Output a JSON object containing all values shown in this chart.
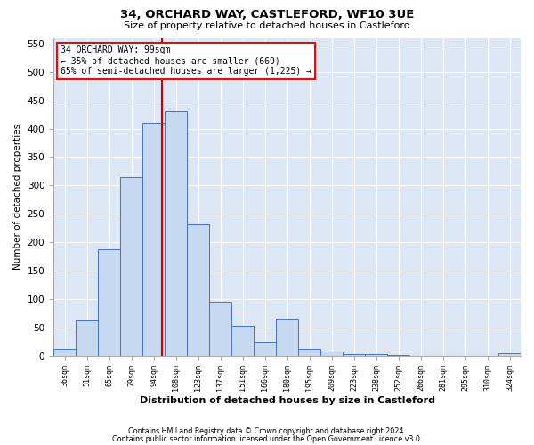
{
  "title1": "34, ORCHARD WAY, CASTLEFORD, WF10 3UE",
  "title2": "Size of property relative to detached houses in Castleford",
  "xlabel": "Distribution of detached houses by size in Castleford",
  "ylabel": "Number of detached properties",
  "categories": [
    "36sqm",
    "51sqm",
    "65sqm",
    "79sqm",
    "94sqm",
    "108sqm",
    "123sqm",
    "137sqm",
    "151sqm",
    "166sqm",
    "180sqm",
    "195sqm",
    "209sqm",
    "223sqm",
    "238sqm",
    "252sqm",
    "266sqm",
    "281sqm",
    "295sqm",
    "310sqm",
    "324sqm"
  ],
  "bar_heights": [
    12,
    62,
    188,
    315,
    410,
    430,
    232,
    95,
    53,
    25,
    65,
    12,
    8,
    3,
    2,
    1,
    0,
    0,
    0,
    0,
    5
  ],
  "bar_color": "#c6d9f1",
  "bar_edge_color": "#4472c4",
  "vline_pos": 4.38,
  "vline_color": "#cc0000",
  "annotation_line1": "34 ORCHARD WAY: 99sqm",
  "annotation_line2": "← 35% of detached houses are smaller (669)",
  "annotation_line3": "65% of semi-detached houses are larger (1,225) →",
  "annotation_box_facecolor": "white",
  "annotation_box_edgecolor": "red",
  "ylim": [
    0,
    560
  ],
  "yticks": [
    0,
    50,
    100,
    150,
    200,
    250,
    300,
    350,
    400,
    450,
    500,
    550
  ],
  "footer1": "Contains HM Land Registry data © Crown copyright and database right 2024.",
  "footer2": "Contains public sector information licensed under the Open Government Licence v3.0.",
  "bg_color": "#dce6f4",
  "grid_color": "white",
  "title1_fontsize": 9.5,
  "title2_fontsize": 8.0,
  "ylabel_fontsize": 7.5,
  "xlabel_fontsize": 8.0,
  "ytick_fontsize": 7.5,
  "xtick_fontsize": 6.0,
  "annot_fontsize": 7.0,
  "footer_fontsize": 5.8
}
